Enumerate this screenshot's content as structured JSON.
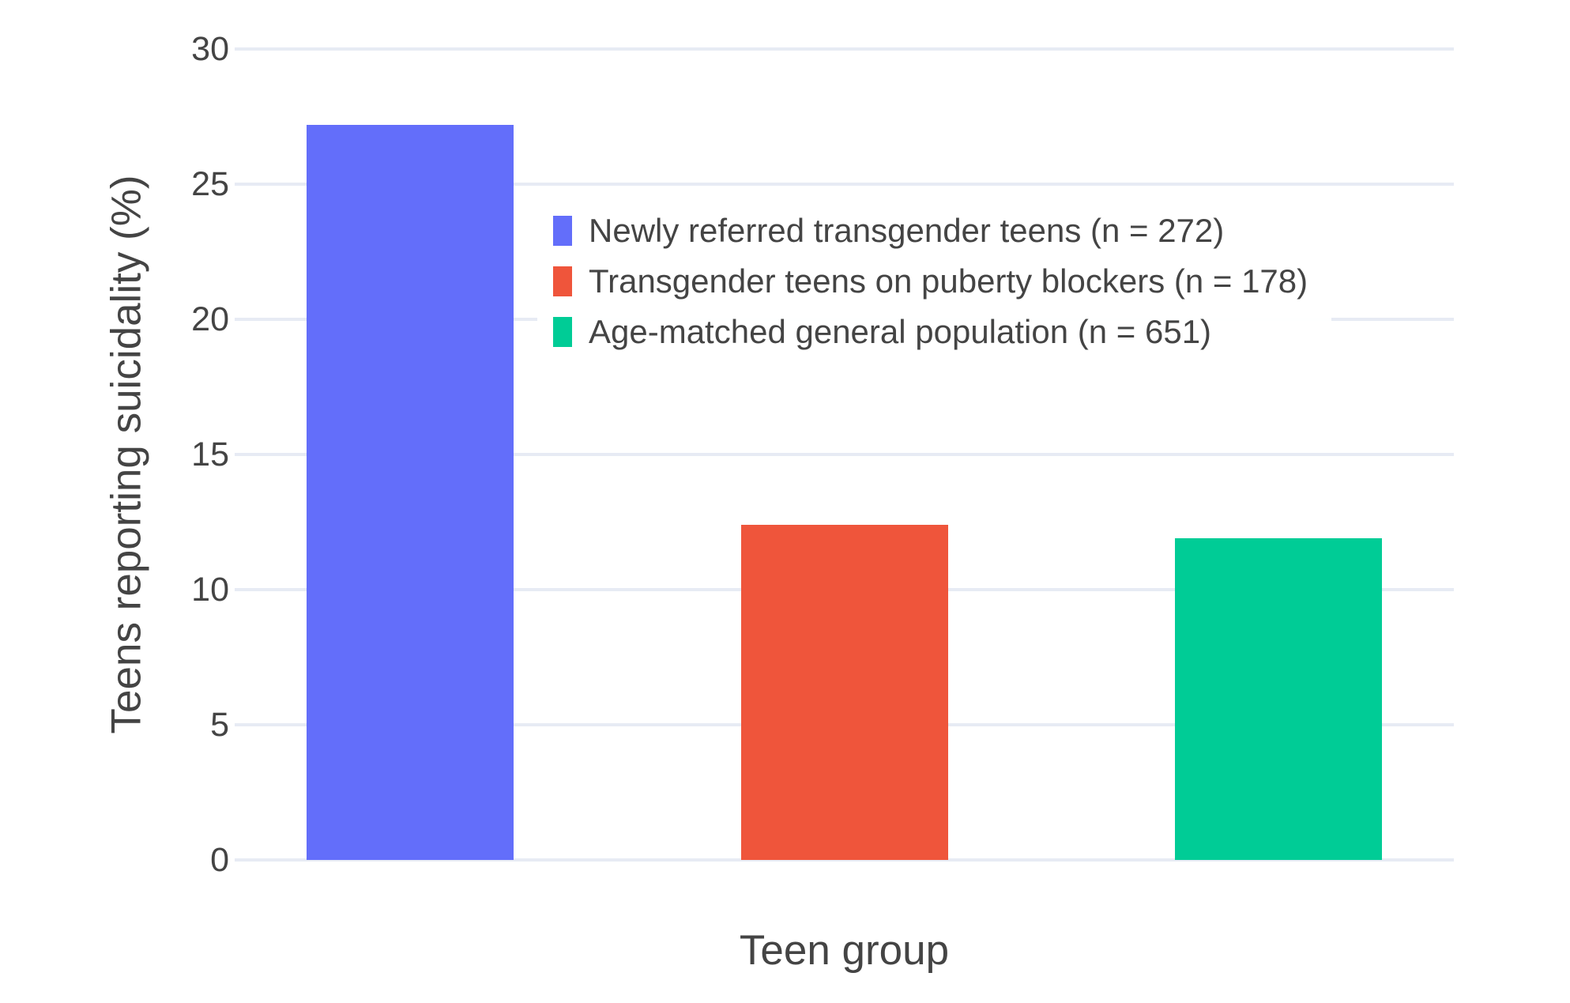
{
  "chart_data": {
    "type": "bar",
    "title": "",
    "xlabel": "Teen group",
    "ylabel": "Teens reporting suicidality (%)",
    "ylim": [
      0,
      30
    ],
    "yticks": [
      0,
      5,
      10,
      15,
      20,
      25,
      30
    ],
    "grid": true,
    "legend_position": "inside-top-center",
    "background_color": "#FFFFFF",
    "gridline_color": "#E7EBF4",
    "text_color": "#444444",
    "series": [
      {
        "name": "Newly referred transgender teens (n = 272)",
        "n": 272,
        "value": 27.2,
        "color": "#636EFA"
      },
      {
        "name": "Transgender teens on puberty blockers (n = 178)",
        "n": 178,
        "value": 12.4,
        "color": "#EF553B"
      },
      {
        "name": "Age-matched general population (n = 651)",
        "n": 651,
        "value": 11.9,
        "color": "#00CC96"
      }
    ]
  }
}
